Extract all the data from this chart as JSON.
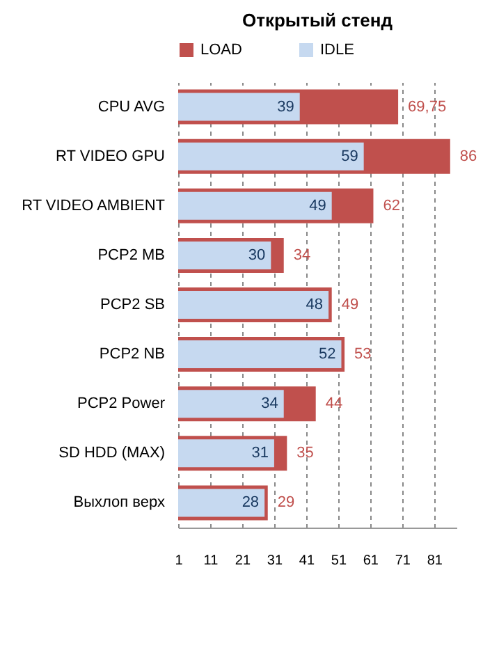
{
  "chart_data": {
    "type": "bar",
    "orientation": "horizontal",
    "title": "Открытый стенд",
    "categories": [
      "CPU AVG",
      "RT VIDEO GPU",
      "RT VIDEO  AMBIENT",
      "PCP2 MB",
      "PCP2 SB",
      "PCP2 NB",
      "PCP2 Power",
      "SD HDD (MAX)",
      "Выхлоп верх"
    ],
    "series": [
      {
        "name": "LOAD",
        "color": "#c0504d",
        "values": [
          69.75,
          86,
          62,
          34,
          49,
          53,
          44,
          35,
          29
        ],
        "value_labels": [
          "69,75",
          "86",
          "62",
          "34",
          "49",
          "53",
          "44",
          "35",
          "29"
        ]
      },
      {
        "name": "IDLE",
        "color": "#c6d9f0",
        "values": [
          39,
          59,
          49,
          30,
          48,
          52,
          34,
          31,
          28
        ],
        "value_labels": [
          "39",
          "59",
          "49",
          "30",
          "48",
          "52",
          "34",
          "31",
          "28"
        ]
      }
    ],
    "xlim": [
      1,
      88
    ],
    "xticks": [
      1,
      11,
      21,
      31,
      41,
      51,
      61,
      71,
      81
    ],
    "grid": "x",
    "legend": "top"
  }
}
